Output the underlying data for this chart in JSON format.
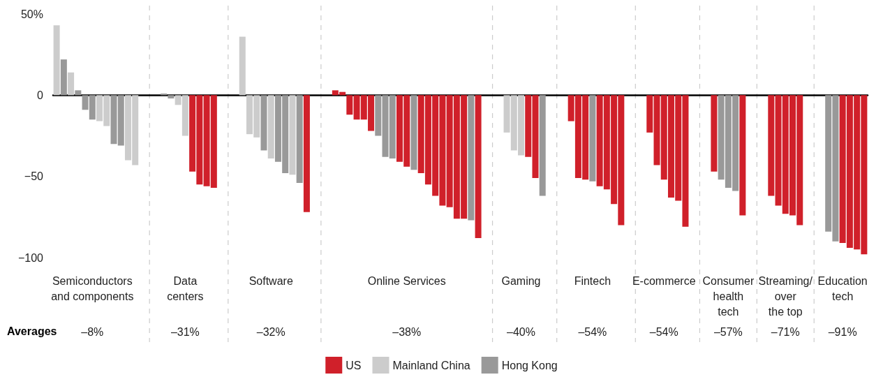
{
  "chart_data": {
    "type": "bar",
    "categories": [
      null,
      null,
      null,
      null,
      null,
      "Semiconductors\nand components",
      null,
      null,
      null,
      null,
      null,
      null,
      null,
      null,
      null,
      null,
      null,
      null,
      "Data\ncenters",
      null,
      null,
      null,
      null,
      null,
      null,
      null,
      null,
      null,
      null,
      null,
      "Software",
      null,
      null,
      null,
      null,
      null,
      null,
      null,
      null,
      null,
      null,
      null,
      null,
      null,
      null,
      null,
      null,
      null,
      null,
      "Online Services",
      null,
      null,
      null,
      null,
      null,
      null,
      null,
      null,
      null,
      null,
      null,
      null,
      null,
      null,
      null,
      "Gaming",
      null,
      null,
      null,
      null,
      null,
      null,
      null,
      null,
      null,
      "Fintech",
      null,
      null,
      null,
      null,
      null,
      null,
      null,
      null,
      null,
      "E-commerce",
      null,
      null,
      null,
      null,
      null,
      null,
      null,
      null,
      "Consumer\nhealth\ntech",
      null,
      null,
      null,
      null,
      null,
      null,
      null,
      "Streaming/\nover\nthe top",
      null,
      null,
      null,
      null,
      null,
      null,
      null,
      "Education\ntech",
      null,
      null,
      null
    ],
    "series": [
      {
        "name": "US",
        "color": "#d0202a",
        "values": [
          null,
          null,
          null,
          null,
          null,
          null,
          null,
          null,
          null,
          null,
          null,
          null,
          null,
          null,
          null,
          null,
          null,
          null,
          null,
          -47,
          -55,
          -56,
          -57,
          null,
          null,
          null,
          null,
          null,
          null,
          null,
          null,
          null,
          null,
          null,
          null,
          -72,
          null,
          null,
          null,
          3,
          2,
          -12,
          -15,
          -15,
          -22,
          null,
          null,
          null,
          -41,
          -44,
          null,
          -48,
          -55,
          -62,
          -68,
          -69,
          -76,
          -76,
          null,
          -88,
          null,
          null,
          null,
          null,
          null,
          null,
          -38,
          -51,
          null,
          null,
          null,
          null,
          -16,
          -51,
          -52,
          null,
          -56,
          -58,
          -67,
          -80,
          null,
          null,
          null,
          -23,
          -43,
          -52,
          -63,
          -65,
          -81,
          null,
          null,
          null,
          -47,
          null,
          null,
          null,
          -74,
          null,
          null,
          null,
          -62,
          -68,
          -73,
          -74,
          -80,
          null,
          null,
          null,
          null,
          null,
          -91,
          -94,
          -95,
          -98
        ]
      },
      {
        "name": "Mainland China",
        "color": "#cccccc",
        "values": [
          43,
          null,
          14,
          null,
          null,
          null,
          -16,
          -19,
          null,
          null,
          -40,
          -43,
          null,
          null,
          null,
          null,
          null,
          -6,
          -25,
          null,
          null,
          null,
          null,
          null,
          null,
          null,
          36,
          -24,
          -26,
          null,
          -39,
          null,
          null,
          -49,
          null,
          null,
          null,
          null,
          null,
          null,
          null,
          null,
          null,
          null,
          null,
          null,
          null,
          null,
          null,
          null,
          null,
          null,
          null,
          null,
          null,
          null,
          null,
          null,
          null,
          null,
          null,
          null,
          null,
          -23,
          -34,
          -37,
          null,
          null,
          null,
          null,
          null,
          null,
          null,
          null,
          null,
          null,
          null,
          null,
          null,
          null,
          null,
          null,
          null,
          null,
          null,
          null,
          null,
          null,
          null,
          null,
          null,
          null,
          null,
          null,
          null,
          null,
          null,
          null,
          null,
          null,
          null,
          null,
          null,
          null,
          null,
          null,
          null,
          null,
          null,
          null,
          null,
          null,
          null,
          null
        ]
      },
      {
        "name": "Hong Kong",
        "color": "#999999",
        "values": [
          null,
          22,
          null,
          3,
          -9,
          -15,
          null,
          null,
          -30,
          -31,
          null,
          null,
          null,
          null,
          null,
          1,
          -2,
          null,
          null,
          null,
          null,
          null,
          null,
          null,
          null,
          null,
          null,
          null,
          null,
          -34,
          null,
          -41,
          -48,
          null,
          -54,
          null,
          null,
          null,
          null,
          null,
          null,
          null,
          null,
          null,
          null,
          -25,
          -38,
          -39,
          null,
          null,
          -46,
          null,
          null,
          null,
          null,
          null,
          null,
          null,
          -77,
          null,
          null,
          null,
          null,
          null,
          null,
          null,
          null,
          null,
          -62,
          null,
          null,
          null,
          null,
          null,
          null,
          -53,
          null,
          null,
          null,
          null,
          null,
          null,
          null,
          null,
          null,
          null,
          null,
          null,
          null,
          null,
          null,
          null,
          null,
          -52,
          -57,
          -59,
          null,
          null,
          null,
          null,
          null,
          null,
          null,
          null,
          null,
          null,
          null,
          null,
          -84,
          -90,
          null,
          null,
          null,
          null
        ]
      }
    ],
    "ylim": [
      -100,
      50
    ],
    "yticks": [
      {
        "value": 50,
        "label": "50%"
      },
      0,
      {
        "value": -50,
        "label": "−50"
      },
      {
        "value": -100,
        "label": "−100"
      }
    ],
    "grid": "x",
    "legend": "bottom",
    "annotations": [
      "Averages",
      "–8%",
      "–31%",
      "–32%",
      "–38%",
      "–40%",
      "–54%",
      "–54%",
      "–57%",
      "–71%",
      "–91%"
    ]
  }
}
